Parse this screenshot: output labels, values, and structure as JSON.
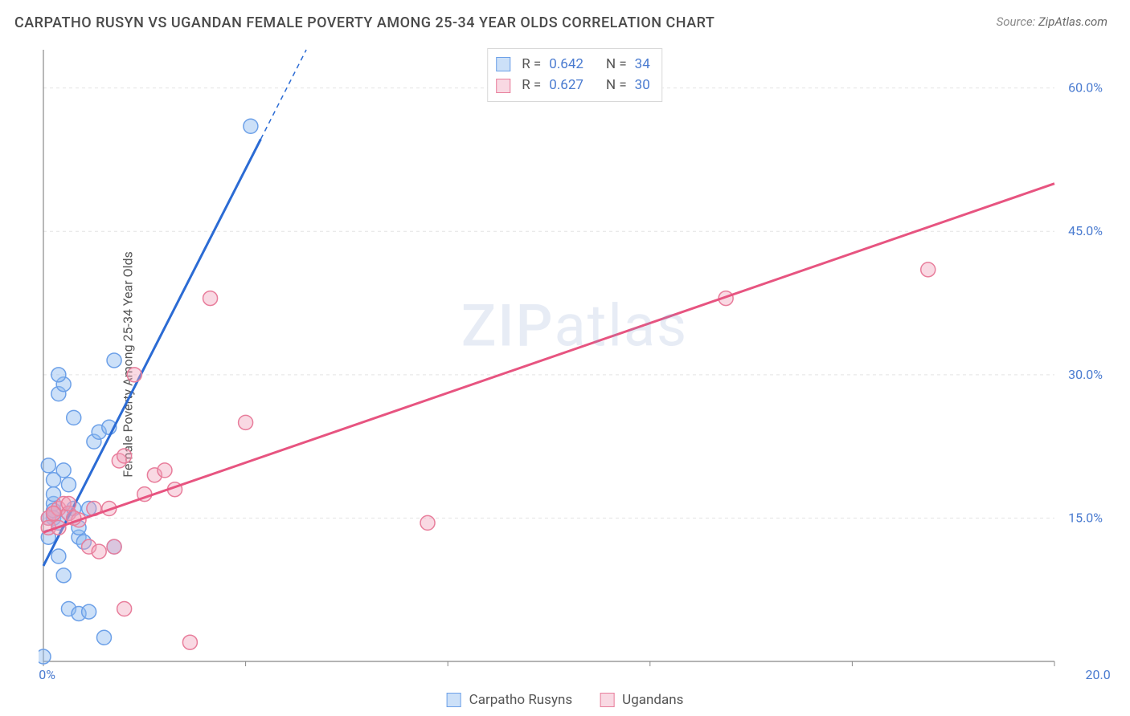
{
  "title": "CARPATHO RUSYN VS UGANDAN FEMALE POVERTY AMONG 25-34 YEAR OLDS CORRELATION CHART",
  "source_label": "Source:",
  "source_name": "ZipAtlas.com",
  "y_axis_label": "Female Poverty Among 25-34 Year Olds",
  "watermark_a": "ZIP",
  "watermark_b": "atlas",
  "chart": {
    "type": "scatter",
    "background_color": "#ffffff",
    "grid_color": "#e4e4e4",
    "axis_color": "#888888",
    "xlim": [
      0,
      20
    ],
    "ylim": [
      0,
      64
    ],
    "xticks": [
      0,
      4,
      8,
      12,
      16,
      20
    ],
    "xtick_labels": [
      "0.0%",
      "",
      "",
      "",
      "",
      "20.0%"
    ],
    "yticks": [
      15,
      30,
      45,
      60
    ],
    "ytick_labels": [
      "15.0%",
      "30.0%",
      "45.0%",
      "60.0%"
    ],
    "tick_fontsize": 16,
    "tick_color": "#4a7bd0",
    "label_fontsize": 16,
    "label_color": "#555555",
    "title_fontsize": 18,
    "title_color": "#4a4a4a",
    "marker_radius": 9,
    "series": [
      {
        "name": "Carpatho Rusyns",
        "color_stroke": "#6ca0e8",
        "color_fill": "rgba(143,186,240,0.45)",
        "line_color": "#2b6bd4",
        "line_width": 3,
        "R": "0.642",
        "N": "34",
        "trend": {
          "x1": 0.0,
          "y1": 10.0,
          "x2": 5.2,
          "y2": 64.0
        },
        "trend_dash_from_x": 4.3,
        "points": [
          [
            0.0,
            0.5
          ],
          [
            0.2,
            15.0
          ],
          [
            0.2,
            16.5
          ],
          [
            0.1,
            13.0
          ],
          [
            0.3,
            14.5
          ],
          [
            0.3,
            11.0
          ],
          [
            0.4,
            9.0
          ],
          [
            0.5,
            5.5
          ],
          [
            0.7,
            5.0
          ],
          [
            0.9,
            5.2
          ],
          [
            1.2,
            2.5
          ],
          [
            1.4,
            12.0
          ],
          [
            0.5,
            15.5
          ],
          [
            0.6,
            16.0
          ],
          [
            0.7,
            13.0
          ],
          [
            0.8,
            12.5
          ],
          [
            0.4,
            20.0
          ],
          [
            0.1,
            20.5
          ],
          [
            0.6,
            25.5
          ],
          [
            0.3,
            28.0
          ],
          [
            0.2,
            19.0
          ],
          [
            1.0,
            23.0
          ],
          [
            1.1,
            24.0
          ],
          [
            1.3,
            24.5
          ],
          [
            0.4,
            29.0
          ],
          [
            1.4,
            31.5
          ],
          [
            0.3,
            30.0
          ],
          [
            0.7,
            14.0
          ],
          [
            0.9,
            16.0
          ],
          [
            0.5,
            18.5
          ],
          [
            0.1,
            15.0
          ],
          [
            0.2,
            15.8
          ],
          [
            0.2,
            17.5
          ],
          [
            4.1,
            56.0
          ]
        ]
      },
      {
        "name": "Ugandans",
        "color_stroke": "#e87d9b",
        "color_fill": "rgba(240,160,185,0.40)",
        "line_color": "#e75480",
        "line_width": 3,
        "R": "0.627",
        "N": "30",
        "trend": {
          "x1": 0.0,
          "y1": 13.5,
          "x2": 20.0,
          "y2": 50.0
        },
        "points": [
          [
            0.1,
            15.0
          ],
          [
            0.1,
            14.0
          ],
          [
            0.2,
            15.5
          ],
          [
            0.3,
            16.0
          ],
          [
            0.4,
            16.5
          ],
          [
            0.5,
            15.5
          ],
          [
            0.7,
            14.8
          ],
          [
            0.9,
            12.0
          ],
          [
            1.1,
            11.5
          ],
          [
            1.4,
            12.0
          ],
          [
            1.6,
            5.5
          ],
          [
            2.9,
            2.0
          ],
          [
            1.3,
            16.0
          ],
          [
            1.5,
            21.0
          ],
          [
            1.6,
            21.5
          ],
          [
            2.0,
            17.5
          ],
          [
            2.2,
            19.5
          ],
          [
            2.4,
            20.0
          ],
          [
            2.6,
            18.0
          ],
          [
            1.8,
            30.0
          ],
          [
            4.0,
            25.0
          ],
          [
            3.3,
            38.0
          ],
          [
            7.6,
            14.5
          ],
          [
            0.2,
            15.5
          ],
          [
            0.3,
            14.0
          ],
          [
            0.5,
            16.5
          ],
          [
            0.6,
            15.0
          ],
          [
            1.0,
            16.0
          ],
          [
            13.5,
            38.0
          ],
          [
            17.5,
            41.0
          ]
        ]
      }
    ],
    "legend_bottom": [
      "Carpatho Rusyns",
      "Ugandans"
    ]
  }
}
